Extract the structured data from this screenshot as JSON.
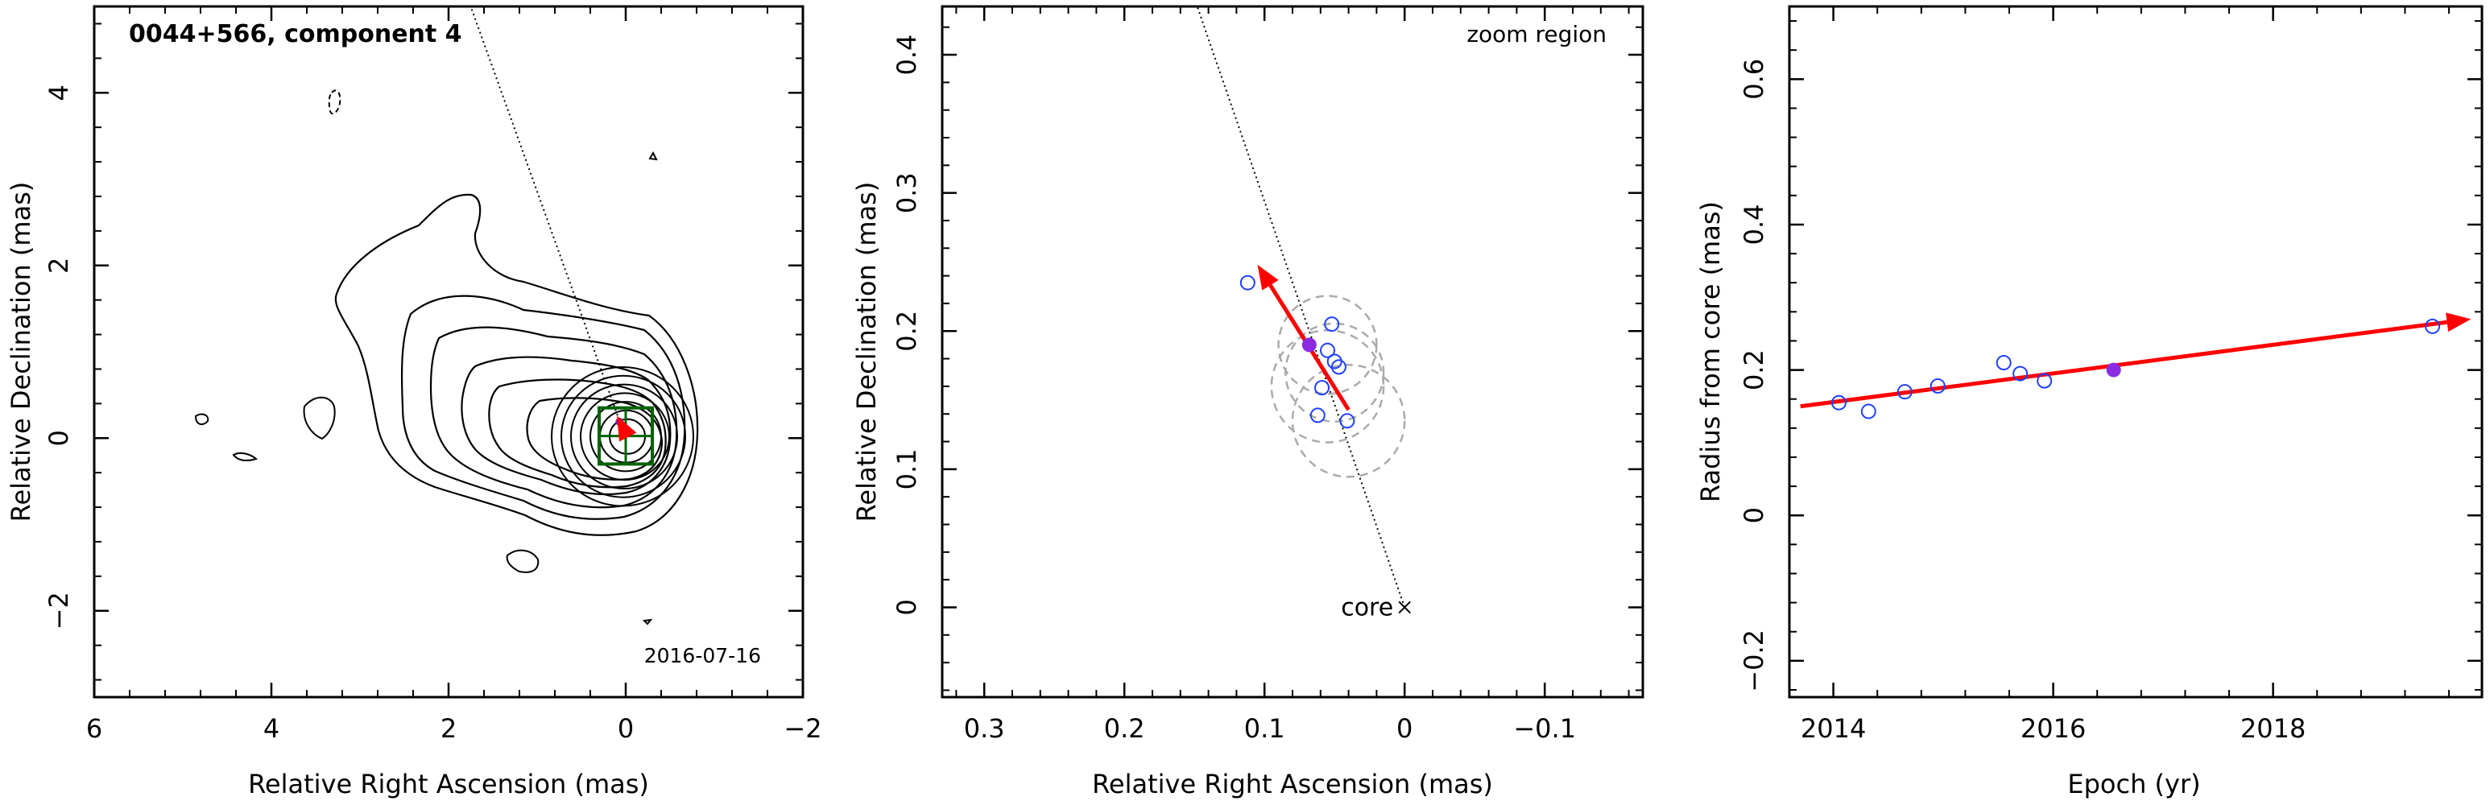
{
  "chart_data": [
    {
      "type": "contour",
      "title": "0044+566, component 4",
      "epoch_label": "2016-07-16",
      "xlabel": "Relative Right Ascension (mas)",
      "ylabel": "Relative Declination (mas)",
      "xlim": [
        6,
        -2
      ],
      "ylim": [
        -3,
        5
      ],
      "xticks": [
        6,
        4,
        2,
        0,
        -2
      ],
      "xtick_labels": [
        "6",
        "4",
        "2",
        "0",
        "−2"
      ],
      "yticks": [
        -2,
        0,
        2,
        4
      ],
      "ytick_labels": [
        "−2",
        "0",
        "2",
        "4"
      ],
      "component_position": [
        0.07,
        0.19
      ],
      "jet_direction_line": [
        [
          0.0,
          0.0
        ],
        [
          1.75,
          5.0
        ]
      ],
      "zoom_box": {
        "x": [
          -0.3,
          0.3
        ],
        "y": [
          -0.3,
          0.35
        ]
      },
      "colors": {
        "contour": "#000000",
        "zoom_box": "#006400",
        "component": "#7b1fa2",
        "vector": "#ff0000"
      }
    },
    {
      "type": "scatter",
      "annotation": "zoom region",
      "core_label": "core",
      "xlabel": "Relative Right Ascension (mas)",
      "ylabel": "Relative Declination (mas)",
      "xlim": [
        0.33,
        -0.17
      ],
      "ylim": [
        -0.065,
        0.435
      ],
      "xticks": [
        0.3,
        0.2,
        0.1,
        0,
        -0.1
      ],
      "xtick_labels": [
        "0.3",
        "0.2",
        "0.1",
        "0",
        "−0.1"
      ],
      "yticks": [
        0,
        0.1,
        0.2,
        0.3,
        0.4
      ],
      "ytick_labels": [
        "0",
        "0.1",
        "0.2",
        "0.3",
        "0.4"
      ],
      "points": [
        {
          "x": 0.112,
          "y": 0.235
        },
        {
          "x": 0.052,
          "y": 0.205
        },
        {
          "x": 0.055,
          "y": 0.186
        },
        {
          "x": 0.05,
          "y": 0.178
        },
        {
          "x": 0.047,
          "y": 0.174
        },
        {
          "x": 0.059,
          "y": 0.159
        },
        {
          "x": 0.062,
          "y": 0.139
        },
        {
          "x": 0.041,
          "y": 0.135
        }
      ],
      "highlight_point": {
        "x": 0.068,
        "y": 0.19
      },
      "beam_circles": [
        {
          "x": 0.055,
          "y": 0.19,
          "r": 0.035
        },
        {
          "x": 0.05,
          "y": 0.17,
          "r": 0.035
        },
        {
          "x": 0.055,
          "y": 0.16,
          "r": 0.04
        },
        {
          "x": 0.04,
          "y": 0.135,
          "r": 0.04
        }
      ],
      "vector": {
        "from": [
          0.04,
          0.143
        ],
        "to": [
          0.105,
          0.248
        ]
      },
      "direction_line": [
        [
          0.0,
          0.0
        ],
        [
          0.148,
          0.435
        ]
      ]
    },
    {
      "type": "scatter",
      "xlabel": "Epoch (yr)",
      "ylabel": "Radius from core (mas)",
      "xlim": [
        2013.6,
        2019.9
      ],
      "ylim": [
        -0.25,
        0.7
      ],
      "xticks": [
        2014,
        2016,
        2018
      ],
      "xtick_labels": [
        "2014",
        "2016",
        "2018"
      ],
      "yticks": [
        -0.2,
        0,
        0.2,
        0.4,
        0.6
      ],
      "ytick_labels": [
        "−0.2",
        "0",
        "0.2",
        "0.4",
        "0.6"
      ],
      "points": [
        {
          "x": 2014.05,
          "y": 0.155
        },
        {
          "x": 2014.32,
          "y": 0.143
        },
        {
          "x": 2014.65,
          "y": 0.17
        },
        {
          "x": 2014.95,
          "y": 0.178
        },
        {
          "x": 2015.55,
          "y": 0.21
        },
        {
          "x": 2015.7,
          "y": 0.195
        },
        {
          "x": 2015.92,
          "y": 0.185
        },
        {
          "x": 2019.45,
          "y": 0.26
        }
      ],
      "highlight_point": {
        "x": 2016.55,
        "y": 0.2
      },
      "fit_line": {
        "x": [
          2013.7,
          2019.8
        ],
        "y": [
          0.15,
          0.27
        ]
      }
    }
  ]
}
